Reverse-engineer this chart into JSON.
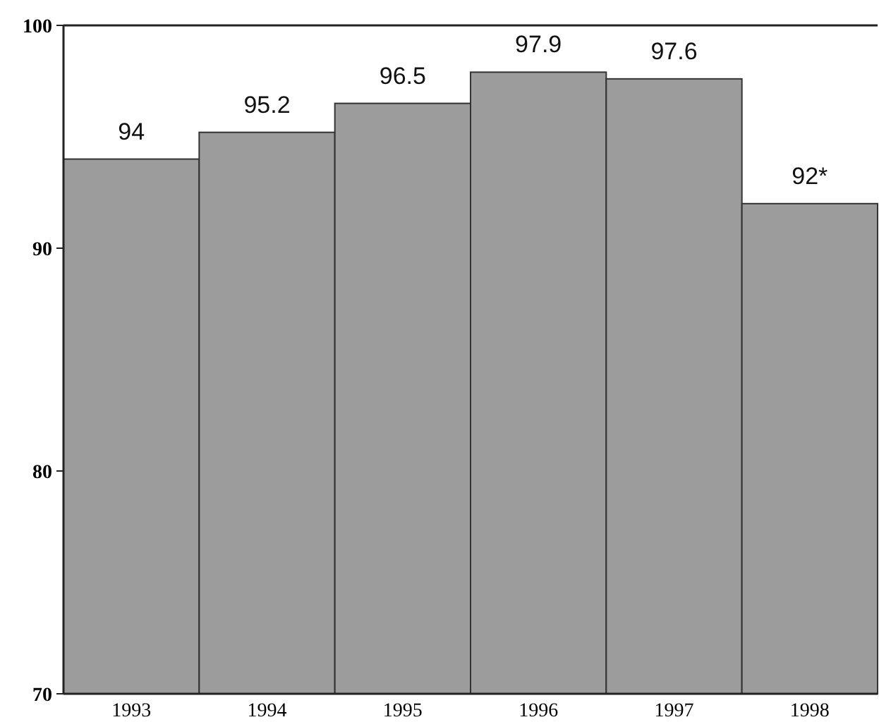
{
  "chart_data": {
    "type": "bar",
    "categories": [
      "1993",
      "1994",
      "1995",
      "1996",
      "1997",
      "1998"
    ],
    "values": [
      94,
      95.2,
      96.5,
      97.9,
      97.6,
      92
    ],
    "value_labels": [
      "94",
      "95.2",
      "96.5",
      "97.9",
      "97.6",
      "92*"
    ],
    "color": "#9c9c9c",
    "ylim": [
      70,
      100
    ],
    "yticks": [
      70,
      80,
      90,
      100
    ]
  }
}
